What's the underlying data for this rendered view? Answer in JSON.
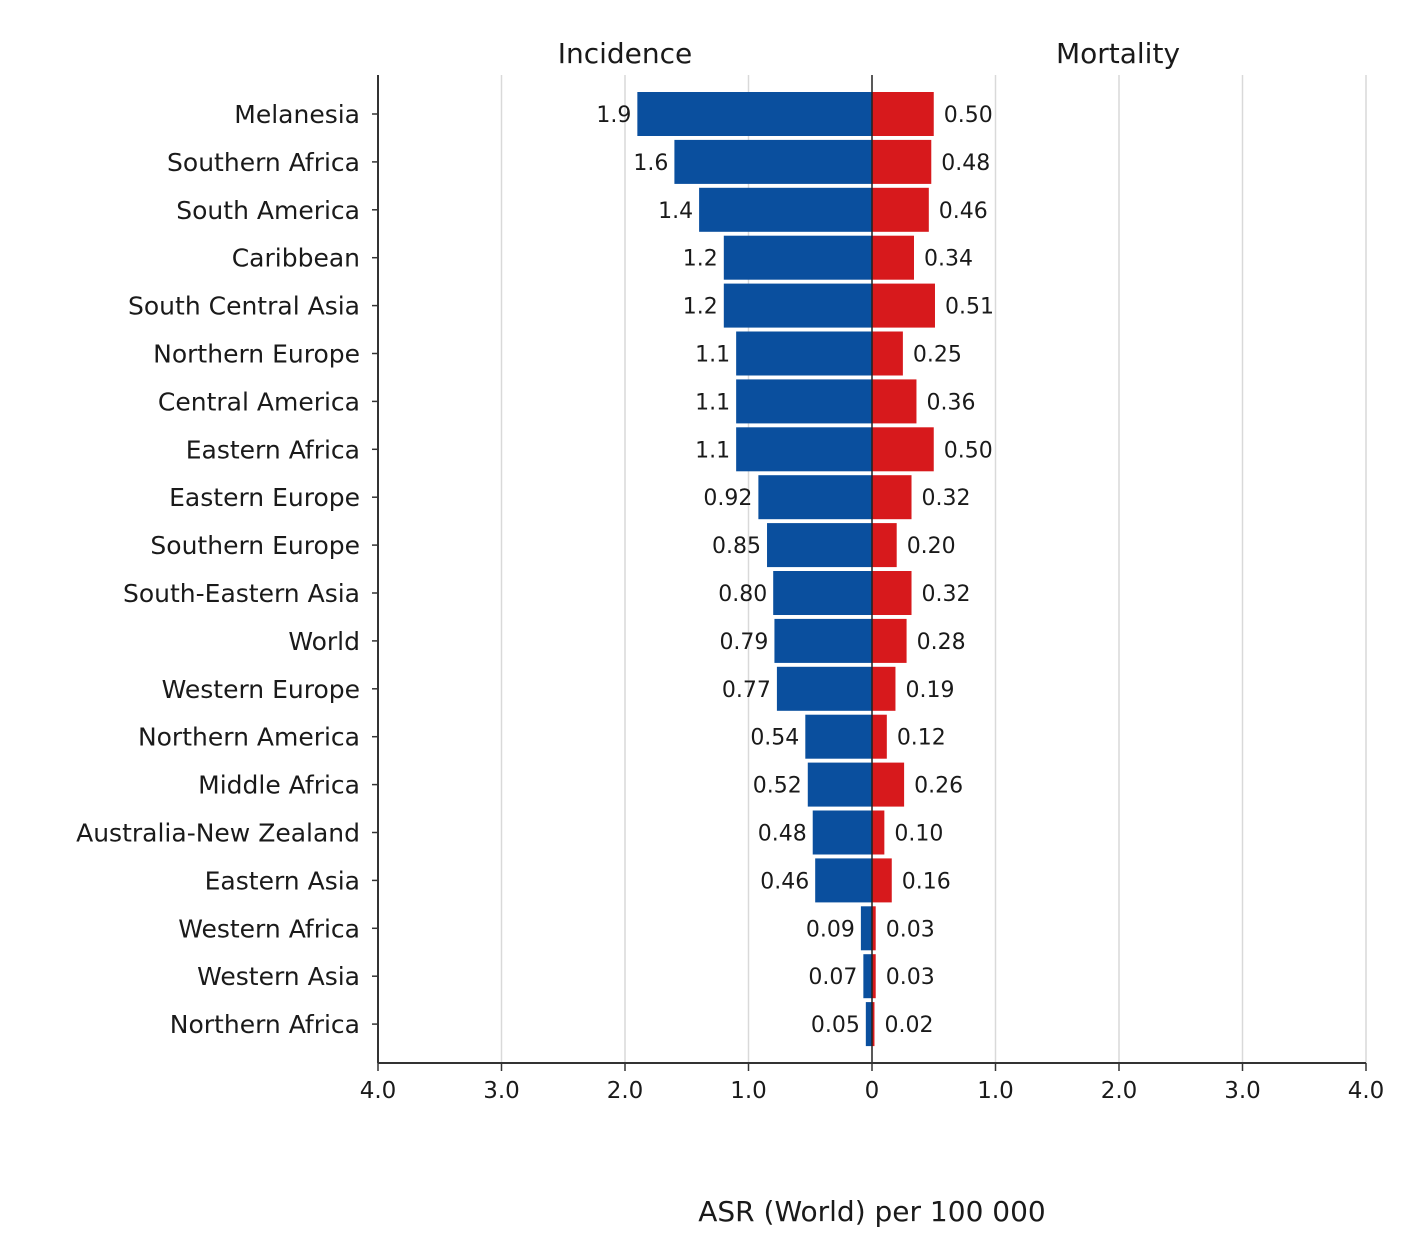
{
  "chart_data": {
    "type": "bar",
    "orientation": "horizontal-diverging",
    "panels": {
      "left_title": "Incidence",
      "right_title": "Mortality"
    },
    "xlabel": "ASR (World) per 100 000",
    "xlim": [
      0,
      4
    ],
    "tick_values": [
      4,
      3,
      2,
      1,
      0,
      1,
      2,
      3,
      4
    ],
    "tick_labels": [
      "4.0",
      "3.0",
      "2.0",
      "1.0",
      "0",
      "1.0",
      "2.0",
      "3.0",
      "4.0"
    ],
    "grid": true,
    "categories": [
      "Melanesia",
      "Southern Africa",
      "South America",
      "Caribbean",
      "South Central Asia",
      "Northern Europe",
      "Central America",
      "Eastern Africa",
      "Eastern Europe",
      "Southern Europe",
      "South-Eastern Asia",
      "World",
      "Western Europe",
      "Northern America",
      "Middle Africa",
      "Australia-New Zealand",
      "Eastern Asia",
      "Western Africa",
      "Western Asia",
      "Northern Africa"
    ],
    "series": [
      {
        "name": "Incidence",
        "color": "#0a4f9e",
        "values": [
          1.9,
          1.6,
          1.4,
          1.2,
          1.2,
          1.1,
          1.1,
          1.1,
          0.92,
          0.85,
          0.8,
          0.79,
          0.77,
          0.54,
          0.52,
          0.48,
          0.46,
          0.09,
          0.07,
          0.05
        ],
        "labels": [
          "1.9",
          "1.6",
          "1.4",
          "1.2",
          "1.2",
          "1.1",
          "1.1",
          "1.1",
          "0.92",
          "0.85",
          "0.80",
          "0.79",
          "0.77",
          "0.54",
          "0.52",
          "0.48",
          "0.46",
          "0.09",
          "0.07",
          "0.05"
        ]
      },
      {
        "name": "Mortality",
        "color": "#d7191c",
        "values": [
          0.5,
          0.48,
          0.46,
          0.34,
          0.51,
          0.25,
          0.36,
          0.5,
          0.32,
          0.2,
          0.32,
          0.28,
          0.19,
          0.12,
          0.26,
          0.1,
          0.16,
          0.03,
          0.03,
          0.02
        ],
        "labels": [
          "0.50",
          "0.48",
          "0.46",
          "0.34",
          "0.51",
          "0.25",
          "0.36",
          "0.50",
          "0.32",
          "0.20",
          "0.32",
          "0.28",
          "0.19",
          "0.12",
          "0.26",
          "0.10",
          "0.16",
          "0.03",
          "0.03",
          "0.02"
        ]
      }
    ]
  }
}
